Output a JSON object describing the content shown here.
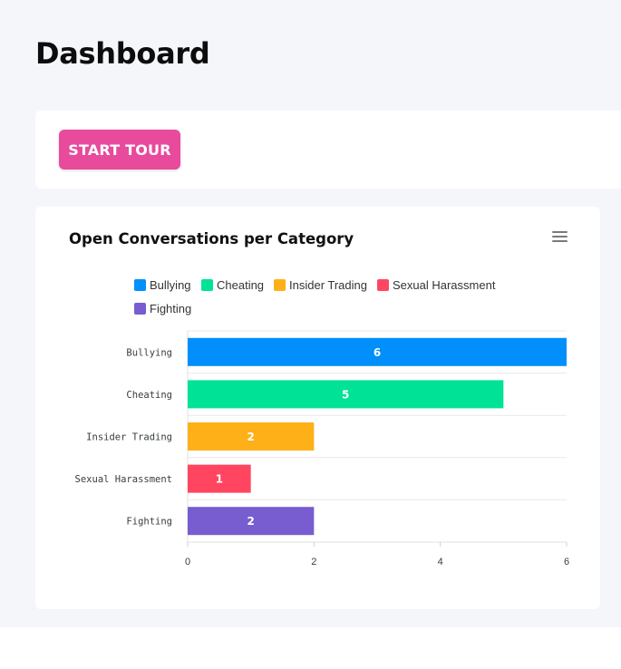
{
  "page": {
    "title": "Dashboard"
  },
  "tour": {
    "button_label": "START TOUR"
  },
  "chart_card": {
    "menu_icon": "hamburger-menu-icon"
  },
  "chart_data": {
    "type": "bar",
    "orientation": "horizontal",
    "title": "Open Conversations per Category",
    "categories": [
      "Bullying",
      "Cheating",
      "Insider Trading",
      "Sexual Harassment",
      "Fighting"
    ],
    "values": [
      6,
      5,
      2,
      1,
      2
    ],
    "colors": [
      "#008ffb",
      "#00e396",
      "#feb019",
      "#ff4560",
      "#775dd0"
    ],
    "xlim": [
      0,
      6
    ],
    "xticks": [
      "0",
      "2",
      "4",
      "6"
    ],
    "legend": [
      "Bullying",
      "Cheating",
      "Insider Trading",
      "Sexual Harassment",
      "Fighting"
    ],
    "legend_position": "top",
    "data_labels": true,
    "grid": "horizontal"
  }
}
